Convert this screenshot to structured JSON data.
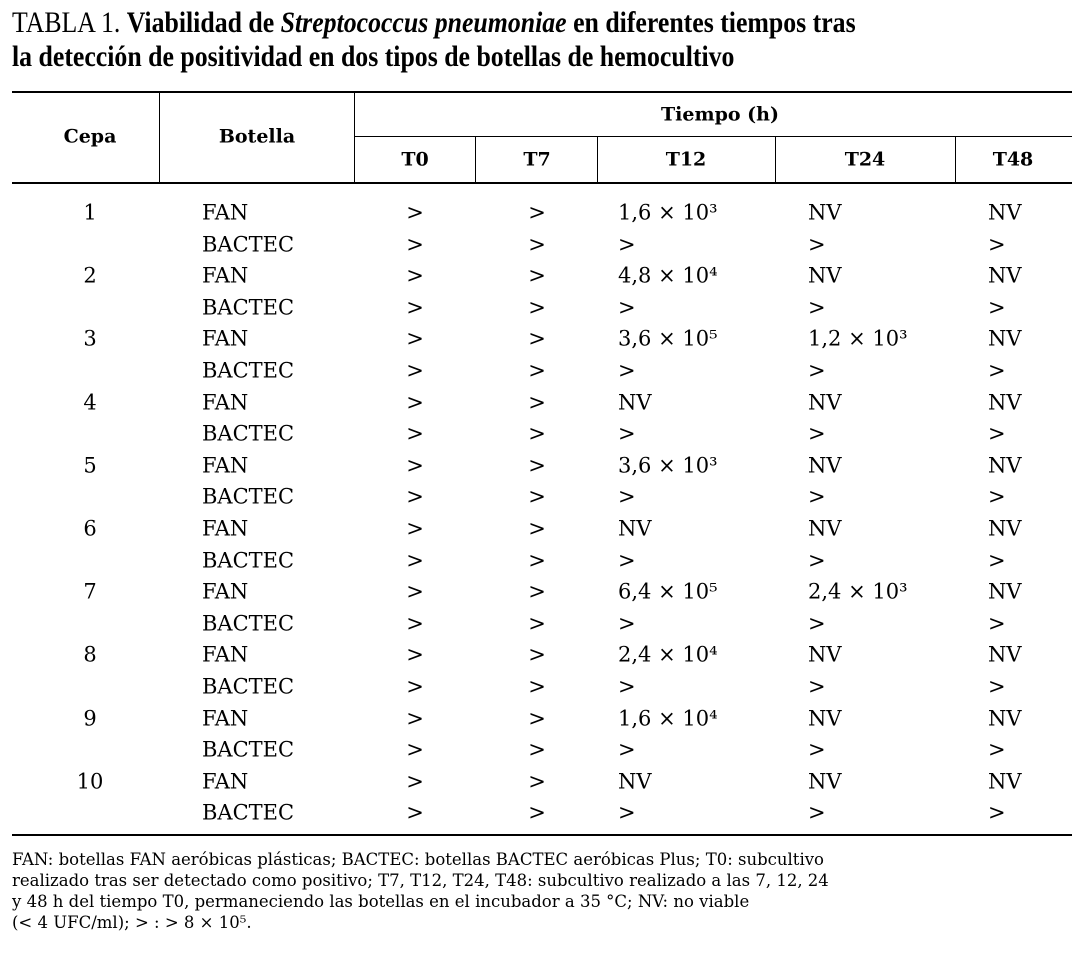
{
  "title": {
    "label": "TABLA 1.",
    "lead": "Viabilidad de",
    "species": "Streptococcus pneumoniae",
    "rest_line1": "en diferentes tiempos tras",
    "line2": "la detección de positividad en dos tipos de botellas de hemocultivo"
  },
  "table": {
    "headers": {
      "cepa": "Cepa",
      "botella": "Botella",
      "group": "Tiempo (h)",
      "times": [
        "T0",
        "T7",
        "T12",
        "T24",
        "T48"
      ]
    },
    "strains": [
      {
        "cepa": "1",
        "rows": [
          [
            "FAN",
            ">",
            ">",
            "1,6 × 10³",
            "NV",
            "NV"
          ],
          [
            "BACTEC",
            ">",
            ">",
            ">",
            ">",
            ">"
          ]
        ]
      },
      {
        "cepa": "2",
        "rows": [
          [
            "FAN",
            ">",
            ">",
            "4,8 × 10⁴",
            "NV",
            "NV"
          ],
          [
            "BACTEC",
            ">",
            ">",
            ">",
            ">",
            ">"
          ]
        ]
      },
      {
        "cepa": "3",
        "rows": [
          [
            "FAN",
            ">",
            ">",
            "3,6 × 10⁵",
            "1,2 × 10³",
            "NV"
          ],
          [
            "BACTEC",
            ">",
            ">",
            ">",
            ">",
            ">"
          ]
        ]
      },
      {
        "cepa": "4",
        "rows": [
          [
            "FAN",
            ">",
            ">",
            "NV",
            "NV",
            "NV"
          ],
          [
            "BACTEC",
            ">",
            ">",
            ">",
            ">",
            ">"
          ]
        ]
      },
      {
        "cepa": "5",
        "rows": [
          [
            "FAN",
            ">",
            ">",
            "3,6 × 10³",
            "NV",
            "NV"
          ],
          [
            "BACTEC",
            ">",
            ">",
            ">",
            ">",
            ">"
          ]
        ]
      },
      {
        "cepa": "6",
        "rows": [
          [
            "FAN",
            ">",
            ">",
            "NV",
            "NV",
            "NV"
          ],
          [
            "BACTEC",
            ">",
            ">",
            ">",
            ">",
            ">"
          ]
        ]
      },
      {
        "cepa": "7",
        "rows": [
          [
            "FAN",
            ">",
            ">",
            "6,4 × 10⁵",
            "2,4 × 10³",
            "NV"
          ],
          [
            "BACTEC",
            ">",
            ">",
            ">",
            ">",
            ">"
          ]
        ]
      },
      {
        "cepa": "8",
        "rows": [
          [
            "FAN",
            ">",
            ">",
            "2,4 × 10⁴",
            "NV",
            "NV"
          ],
          [
            "BACTEC",
            ">",
            ">",
            ">",
            ">",
            ">"
          ]
        ]
      },
      {
        "cepa": "9",
        "rows": [
          [
            "FAN",
            ">",
            ">",
            "1,6 × 10⁴",
            "NV",
            "NV"
          ],
          [
            "BACTEC",
            ">",
            ">",
            ">",
            ">",
            ">"
          ]
        ]
      },
      {
        "cepa": "10",
        "rows": [
          [
            "FAN",
            ">",
            ">",
            "NV",
            "NV",
            "NV"
          ],
          [
            "BACTEC",
            ">",
            ">",
            ">",
            ">",
            ">"
          ]
        ]
      }
    ]
  },
  "footnote": [
    "FAN: botellas FAN aeróbicas plásticas; BACTEC: botellas BACTEC aeróbicas Plus; T0: subcultivo",
    "realizado tras ser detectado como positivo; T7, T12, T24, T48: subcultivo realizado a las 7, 12, 24",
    "y 48 h del tiempo T0, permaneciendo las botellas en el incubador a 35 °C; NV: no viable",
    "(< 4 UFC/ml); > : > 8 × 10⁵."
  ]
}
